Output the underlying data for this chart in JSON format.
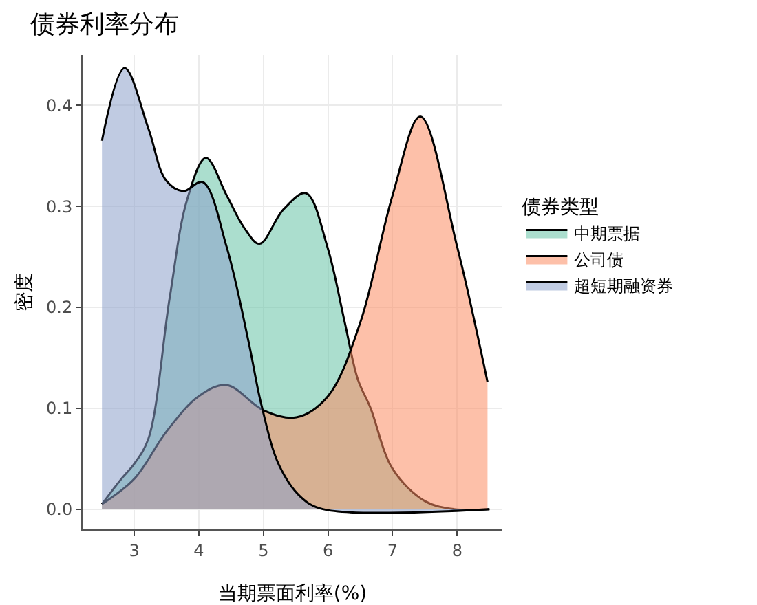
{
  "chart_data": {
    "type": "area",
    "title": "债券利率分布",
    "xlabel": "当期票面利率(%)",
    "ylabel": "密度",
    "legend_title": "债券类型",
    "xlim": [
      2.2,
      8.7
    ],
    "xticks": [
      3,
      4,
      5,
      6,
      7,
      8
    ],
    "ylim": [
      -0.02,
      0.45
    ],
    "yticks": [
      {
        "value": 0,
        "label": "0.0"
      },
      0.1,
      0.2,
      0.3,
      0.4
    ],
    "grid": true,
    "legend": "right",
    "series": [
      {
        "name": "中期票据",
        "color": "#66c2a5",
        "x": [
          2.5,
          2.8,
          3.0,
          3.22,
          3.55,
          3.82,
          4.11,
          4.43,
          4.7,
          4.94,
          5.31,
          5.66,
          5.99,
          6.26,
          6.46,
          6.66,
          7.0,
          7.5,
          7.95,
          8.5
        ],
        "values": [
          0.005,
          0.03,
          0.045,
          0.07,
          0.21,
          0.307,
          0.348,
          0.311,
          0.279,
          0.263,
          0.297,
          0.313,
          0.26,
          0.185,
          0.129,
          0.1,
          0.04,
          0.008,
          0,
          0
        ]
      },
      {
        "name": "公司债",
        "color": "#fc8d62",
        "x": [
          2.5,
          3.0,
          3.5,
          4.0,
          4.43,
          5.0,
          5.51,
          6.0,
          6.5,
          7.0,
          7.43,
          8.0,
          8.47
        ],
        "values": [
          0.005,
          0.03,
          0.077,
          0.112,
          0.123,
          0.098,
          0.091,
          0.112,
          0.185,
          0.311,
          0.389,
          0.26,
          0.126
        ]
      },
      {
        "name": "超短期融资券",
        "color": "#8da0cb",
        "x": [
          2.5,
          2.85,
          3.22,
          3.49,
          3.76,
          4.06,
          4.43,
          4.77,
          4.97,
          5.24,
          5.58,
          5.92,
          8.5
        ],
        "values": [
          0.365,
          0.437,
          0.377,
          0.326,
          0.315,
          0.324,
          0.26,
          0.166,
          0.103,
          0.044,
          0.012,
          0,
          0
        ]
      }
    ]
  }
}
